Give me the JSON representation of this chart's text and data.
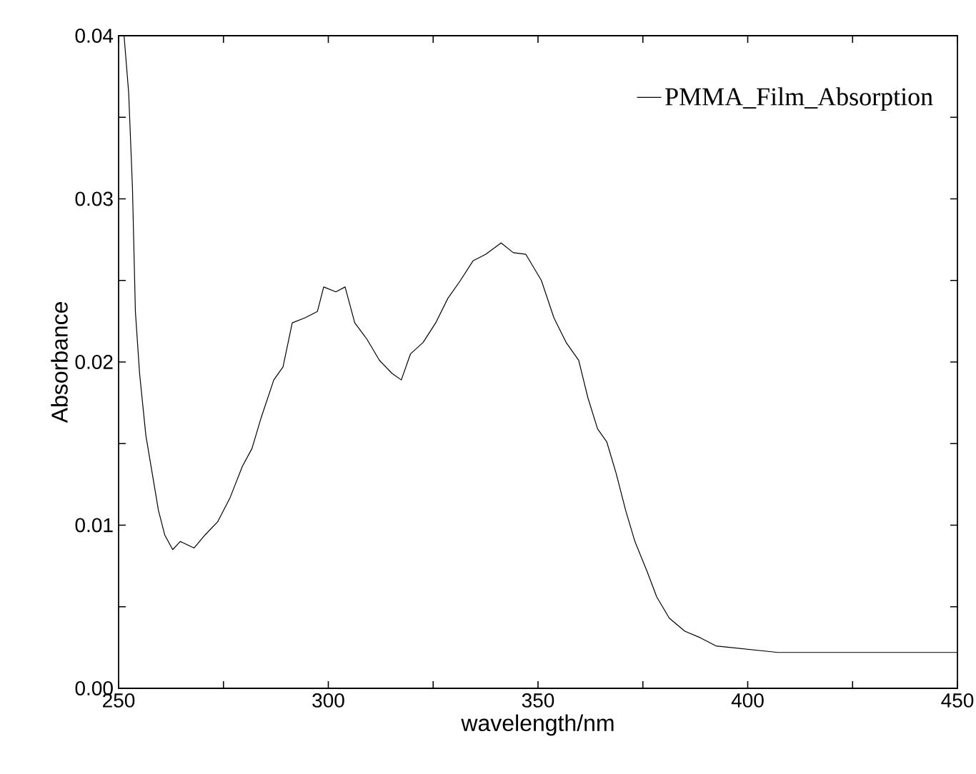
{
  "chart_data": {
    "type": "line",
    "xlabel": "wavelength/nm",
    "ylabel": "Absorbance",
    "xlim": [
      250,
      450
    ],
    "ylim": [
      0,
      0.04
    ],
    "xticks": [
      250,
      {
        "value": 275,
        "label": null
      },
      300,
      {
        "value": 325,
        "label": null
      },
      350,
      {
        "value": 375,
        "label": null
      },
      400,
      {
        "value": 425,
        "label": null
      },
      450
    ],
    "yticks": [
      {
        "value": 0,
        "label": "0.00"
      },
      {
        "value": 0.005,
        "label": null
      },
      0.01,
      {
        "value": 0.015,
        "label": null
      },
      0.02,
      {
        "value": 0.025,
        "label": null
      },
      0.03,
      {
        "value": 0.035,
        "label": null
      },
      0.04
    ],
    "legend": "top right",
    "grid": false,
    "series": [
      {
        "name": "PMMA_Film_Absorption",
        "color": "#000000",
        "x": [
          251.3,
          252.4,
          253.3,
          254,
          255,
          256.5,
          258,
          259.5,
          261,
          262.9,
          264.7,
          268,
          270.6,
          273.6,
          276.6,
          279.5,
          281.8,
          284,
          287,
          289.2,
          291.4,
          294.4,
          297.4,
          298.9,
          301.8,
          304,
          306.3,
          309.2,
          312.2,
          315.2,
          317.4,
          319.6,
          322.6,
          325.6,
          328.5,
          331.5,
          334.5,
          337.5,
          341.2,
          344.1,
          347.1,
          350.8,
          353.8,
          356.7,
          359.7,
          361.9,
          364.2,
          366.4,
          368.6,
          370.9,
          373.1,
          376.1,
          378.3,
          381.3,
          385,
          388.7,
          392.4,
          399.8,
          407.2,
          414.7,
          422.1,
          429.5,
          436.9,
          444.4,
          450
        ],
        "values": [
          0.04,
          0.0365,
          0.0307,
          0.0231,
          0.0193,
          0.0155,
          0.0132,
          0.0109,
          0.0094,
          0.0085,
          0.009,
          0.0086,
          0.0094,
          0.0102,
          0.0117,
          0.0136,
          0.0147,
          0.0166,
          0.0189,
          0.0197,
          0.0224,
          0.0227,
          0.0231,
          0.0246,
          0.0243,
          0.0246,
          0.0224,
          0.0214,
          0.0201,
          0.0193,
          0.0189,
          0.0205,
          0.0212,
          0.0224,
          0.0239,
          0.025,
          0.0262,
          0.0266,
          0.0273,
          0.0267,
          0.0266,
          0.025,
          0.0227,
          0.0212,
          0.0201,
          0.0178,
          0.0159,
          0.0151,
          0.0132,
          0.0109,
          0.009,
          0.0071,
          0.0056,
          0.0043,
          0.0035,
          0.0031,
          0.0026,
          0.0024,
          0.0022,
          0.0022,
          0.0022,
          0.0022,
          0.0022,
          0.0022,
          0.0022
        ]
      }
    ]
  }
}
